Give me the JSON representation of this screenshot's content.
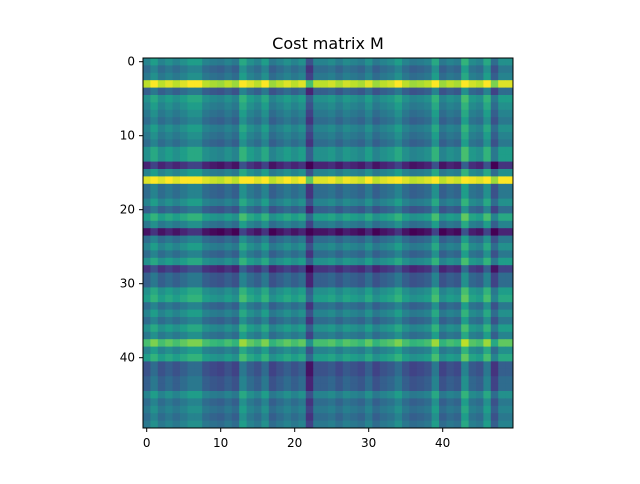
{
  "chart_data": {
    "type": "heatmap",
    "title": "Cost matrix M",
    "xlabel": "",
    "ylabel": "",
    "rows": 50,
    "cols": 50,
    "x_ticks": [
      0,
      10,
      20,
      30,
      40
    ],
    "y_ticks": [
      0,
      10,
      20,
      30,
      40
    ],
    "y_axis_inverted": true,
    "colormap": "viridis",
    "colorbar": false,
    "grid": false,
    "value_scale": [
      0,
      10
    ],
    "row_levels": [
      4.5,
      3.5,
      4,
      9,
      3,
      5,
      4.5,
      4,
      3.5,
      4.5,
      4,
      3.5,
      5,
      5,
      1,
      4.5,
      9.5,
      3.5,
      3.5,
      4.5,
      3,
      5.5,
      4,
      0.5,
      3.5,
      4.5,
      3.5,
      5,
      1.5,
      3,
      3,
      5,
      5.5,
      3.5,
      4.5,
      3.5,
      5,
      4,
      7,
      4.5,
      5.5,
      2.5,
      2.5,
      3,
      3,
      4.5,
      3.5,
      4,
      3.5,
      4
    ],
    "column_offsets": [
      0,
      1,
      0,
      0.5,
      0,
      0.5,
      1,
      1,
      0,
      -0.3,
      -0.5,
      0,
      -0.5,
      1.5,
      0.5,
      0,
      1,
      -0.5,
      0,
      0.5,
      0,
      0.5,
      -2,
      0,
      0,
      0.3,
      -0.3,
      0.3,
      0,
      -0.3,
      0.5,
      -0.5,
      0,
      0.3,
      1,
      0,
      -0.5,
      -0.3,
      0,
      1.5,
      -0.5,
      0,
      -0.3,
      2,
      0.3,
      0,
      1.5,
      -1,
      0.5,
      0.5
    ]
  }
}
